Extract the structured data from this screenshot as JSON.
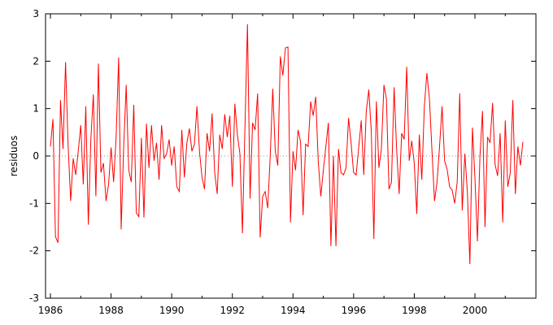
{
  "chart_data": {
    "type": "line",
    "ylabel": "residuos",
    "xlabel": "",
    "title": "",
    "xlim": [
      1985.5,
      2002.5
    ],
    "ylim": [
      -3,
      3
    ],
    "xticks": [
      1986,
      1988,
      1990,
      1992,
      1994,
      1996,
      1998,
      2000
    ],
    "xtick_labels": [
      "1986",
      "1988",
      "1990",
      "1992",
      "1994",
      "1996",
      "1998",
      "2000"
    ],
    "yticks": [
      -3,
      -2,
      -1,
      0,
      1,
      2,
      3
    ],
    "ytick_labels": [
      "-3",
      "-2",
      "-1",
      "0",
      "1",
      "2",
      "3"
    ],
    "zero_line": "dotted",
    "grid": false,
    "series": [
      {
        "color": "#ff0000",
        "x_start": 1986.0,
        "x_step": 0.08333,
        "values": [
          0.2,
          0.78,
          -1.7,
          -1.83,
          1.18,
          0.15,
          1.98,
          0.25,
          -0.95,
          -0.05,
          -0.4,
          0.1,
          0.65,
          -0.6,
          1.05,
          -1.45,
          0.35,
          1.3,
          -0.85,
          1.95,
          -0.35,
          -0.15,
          -0.95,
          -0.6,
          0.18,
          -0.55,
          0.4,
          2.08,
          -1.55,
          0.2,
          1.5,
          -0.3,
          -0.55,
          1.08,
          -1.2,
          -1.28,
          0.38,
          -1.3,
          0.68,
          -0.25,
          0.65,
          -0.1,
          0.28,
          -0.5,
          0.65,
          -0.05,
          0.05,
          0.35,
          -0.2,
          0.2,
          -0.65,
          -0.75,
          0.55,
          -0.45,
          0.28,
          0.58,
          0.1,
          0.25,
          1.05,
          0.1,
          -0.45,
          -0.7,
          0.48,
          0.1,
          0.9,
          -0.35,
          -0.8,
          0.45,
          0.15,
          0.88,
          0.4,
          0.85,
          -0.65,
          1.1,
          0.45,
          0.05,
          -1.63,
          0.6,
          2.78,
          -0.9,
          0.7,
          0.55,
          1.32,
          -1.72,
          -0.85,
          -0.75,
          -1.1,
          0.0,
          1.42,
          0.1,
          -0.2,
          2.1,
          1.7,
          2.28,
          2.3,
          -1.4,
          0.1,
          -0.3,
          0.55,
          0.3,
          -1.25,
          0.25,
          0.2,
          1.15,
          0.85,
          1.25,
          -0.1,
          -0.85,
          -0.3,
          0.2,
          0.7,
          -1.9,
          0.0,
          -1.9,
          0.15,
          -0.35,
          -0.4,
          -0.25,
          0.8,
          0.28,
          -0.35,
          -0.4,
          0.18,
          0.75,
          -0.4,
          0.95,
          1.4,
          0.5,
          -1.75,
          1.15,
          -0.25,
          0.15,
          1.5,
          1.2,
          -0.7,
          -0.55,
          1.45,
          0.15,
          -0.8,
          0.48,
          0.35,
          1.88,
          -0.1,
          0.32,
          -0.15,
          -1.22,
          0.45,
          -0.5,
          1.05,
          1.75,
          1.2,
          0.1,
          -0.95,
          -0.55,
          0.2,
          1.05,
          -0.1,
          -0.28,
          -0.65,
          -0.72,
          -1.0,
          -0.55,
          1.32,
          -1.15,
          0.05,
          -0.75,
          -2.28,
          0.6,
          -0.45,
          -1.8,
          0.0,
          0.95,
          -1.5,
          0.4,
          0.28,
          1.12,
          -0.18,
          -0.42,
          0.48,
          -1.4,
          0.75,
          -0.65,
          -0.35,
          1.18,
          -0.8,
          0.2,
          -0.2,
          0.3
        ]
      }
    ]
  }
}
